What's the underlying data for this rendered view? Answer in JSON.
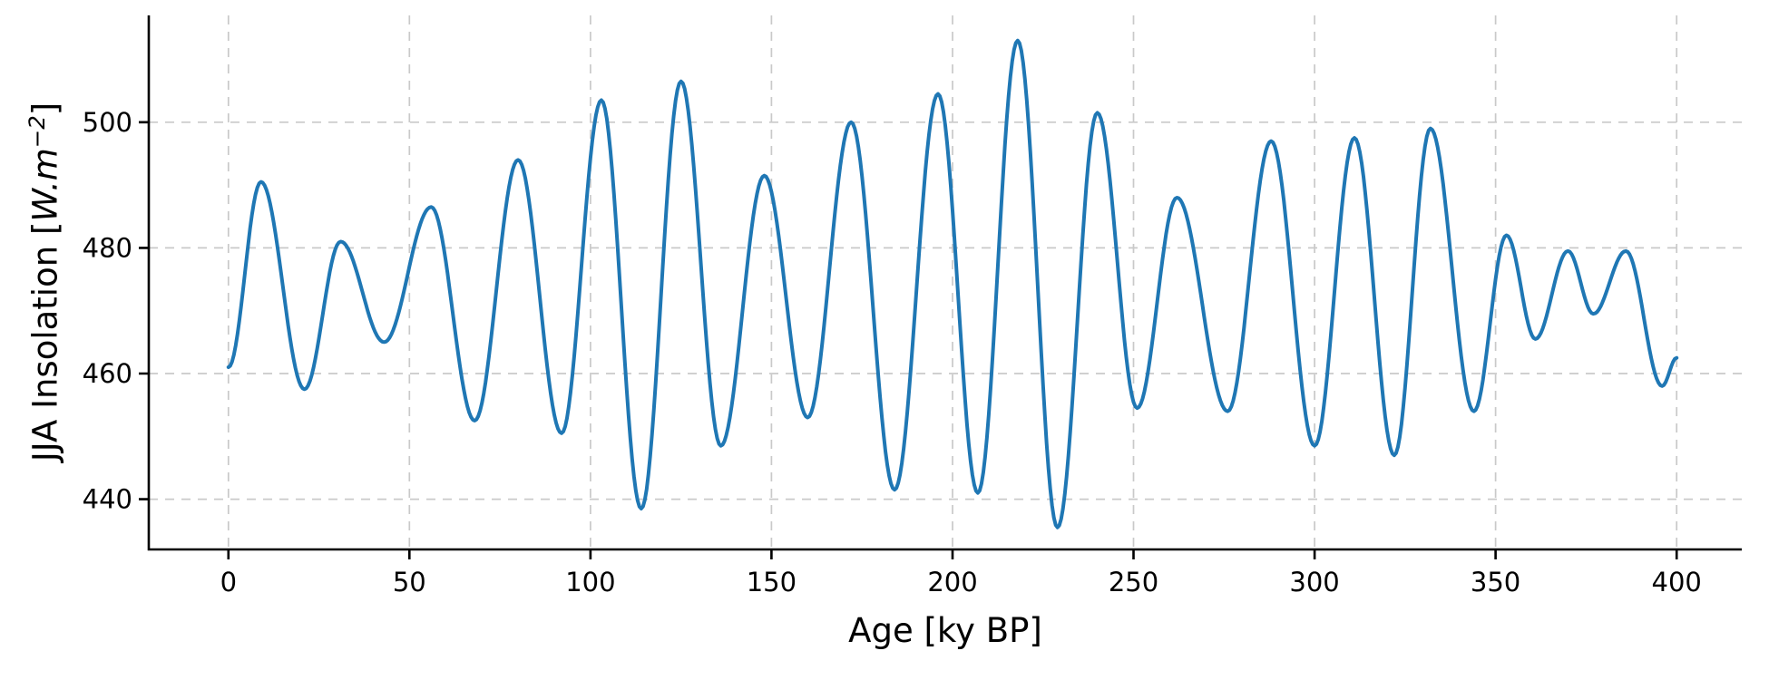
{
  "chart_data": {
    "type": "line",
    "title": "",
    "xlabel": "Age [ky BP]",
    "ylabel": "JJA Insolation [W.m⁻²]",
    "ylabel_parts": {
      "prefix": "JJA Insolation [",
      "math": "W.m",
      "exponent": "−2",
      "suffix": "]"
    },
    "xlim": [
      -22,
      418
    ],
    "ylim": [
      432,
      517
    ],
    "xticks": [
      0,
      50,
      100,
      150,
      200,
      250,
      300,
      350,
      400
    ],
    "yticks": [
      440,
      460,
      480,
      500
    ],
    "grid": true,
    "grid_style": "dashed",
    "legend": false,
    "line_color": "#1f77b4",
    "series": [
      {
        "name": "JJA insolation",
        "color": "#1f77b4",
        "interpolation": "smooth cosine between extrema",
        "keypoints_x": [
          0,
          9,
          21,
          31,
          43,
          56,
          68,
          80,
          92,
          103,
          114,
          125,
          136,
          148,
          160,
          172,
          184,
          196,
          207,
          218,
          229,
          240,
          251,
          262,
          276,
          288,
          300,
          311,
          322,
          332,
          344,
          353,
          361,
          370,
          377,
          386,
          396,
          400
        ],
        "keypoints_y": [
          461,
          490.5,
          457.5,
          481,
          465,
          486.5,
          452.5,
          494,
          450.5,
          503.5,
          438.5,
          506.5,
          448.5,
          491.5,
          453,
          500,
          441.5,
          504.5,
          441,
          513,
          435.5,
          501.5,
          454.5,
          488,
          454,
          497,
          448.5,
          497.5,
          447,
          499,
          454,
          482,
          465.5,
          479.5,
          469.5,
          479.5,
          458,
          462.5
        ]
      }
    ]
  }
}
